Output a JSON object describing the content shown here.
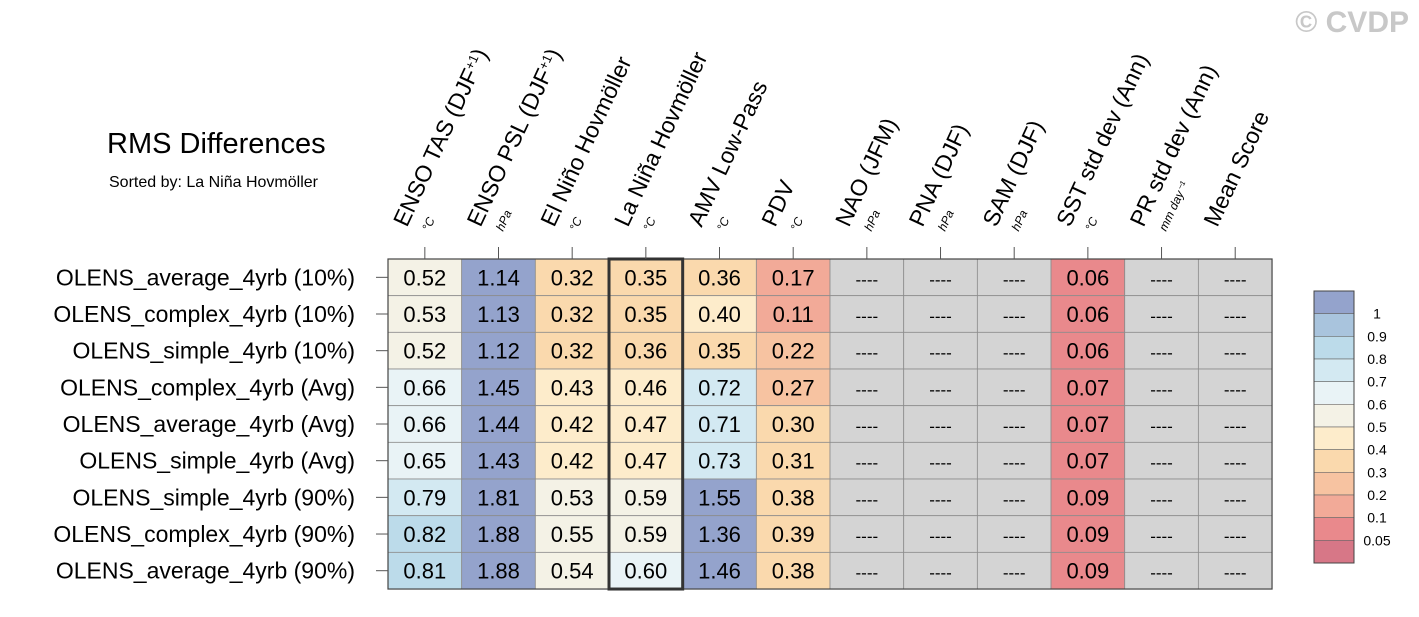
{
  "watermark": "© CVDP",
  "chart_data": {
    "type": "heatmap",
    "title": "RMS Differences",
    "subtitle": "Sorted by: La Niña Hovmöller",
    "columns": [
      {
        "label": "ENSO TAS (DJF",
        "sup": "+1",
        "close": ")",
        "unit": "°C"
      },
      {
        "label": "ENSO PSL (DJF",
        "sup": "+1",
        "close": ")",
        "unit": "hPa"
      },
      {
        "label": "El Niño Hovmöller",
        "sup": "",
        "close": "",
        "unit": "°C"
      },
      {
        "label": "La Niña Hovmöller",
        "sup": "",
        "close": "",
        "unit": "°C"
      },
      {
        "label": "AMV Low-Pass",
        "sup": "",
        "close": "",
        "unit": "°C"
      },
      {
        "label": "PDV",
        "sup": "",
        "close": "",
        "unit": "°C"
      },
      {
        "label": "NAO (JFM)",
        "sup": "",
        "close": "",
        "unit": "hPa"
      },
      {
        "label": "PNA (DJF)",
        "sup": "",
        "close": "",
        "unit": "hPa"
      },
      {
        "label": "SAM (DJF)",
        "sup": "",
        "close": "",
        "unit": "hPa"
      },
      {
        "label": "SST std dev (Ann)",
        "sup": "",
        "close": "",
        "unit": "°C"
      },
      {
        "label": "PR std dev (Ann)",
        "sup": "",
        "close": "",
        "unit": "mm day⁻¹"
      },
      {
        "label": "Mean Score",
        "sup": "",
        "close": "",
        "unit": ""
      }
    ],
    "highlight_column": 3,
    "missing_text": "----",
    "missing_color": "#d4d4d4",
    "rows": [
      {
        "name": "OLENS_average_4yrb (10%)",
        "values": [
          0.52,
          1.14,
          0.32,
          0.35,
          0.36,
          0.17,
          null,
          null,
          null,
          0.06,
          null,
          null
        ]
      },
      {
        "name": "OLENS_complex_4yrb (10%)",
        "values": [
          0.53,
          1.13,
          0.32,
          0.35,
          0.4,
          0.11,
          null,
          null,
          null,
          0.06,
          null,
          null
        ]
      },
      {
        "name": "OLENS_simple_4yrb (10%)",
        "values": [
          0.52,
          1.12,
          0.32,
          0.36,
          0.35,
          0.22,
          null,
          null,
          null,
          0.06,
          null,
          null
        ]
      },
      {
        "name": "OLENS_complex_4yrb (Avg)",
        "values": [
          0.66,
          1.45,
          0.43,
          0.46,
          0.72,
          0.27,
          null,
          null,
          null,
          0.07,
          null,
          null
        ]
      },
      {
        "name": "OLENS_average_4yrb (Avg)",
        "values": [
          0.66,
          1.44,
          0.42,
          0.47,
          0.71,
          0.3,
          null,
          null,
          null,
          0.07,
          null,
          null
        ]
      },
      {
        "name": "OLENS_simple_4yrb (Avg)",
        "values": [
          0.65,
          1.43,
          0.42,
          0.47,
          0.73,
          0.31,
          null,
          null,
          null,
          0.07,
          null,
          null
        ]
      },
      {
        "name": "OLENS_simple_4yrb (90%)",
        "values": [
          0.79,
          1.81,
          0.53,
          0.59,
          1.55,
          0.38,
          null,
          null,
          null,
          0.09,
          null,
          null
        ]
      },
      {
        "name": "OLENS_complex_4yrb (90%)",
        "values": [
          0.82,
          1.88,
          0.55,
          0.59,
          1.36,
          0.39,
          null,
          null,
          null,
          0.09,
          null,
          null
        ]
      },
      {
        "name": "OLENS_average_4yrb (90%)",
        "values": [
          0.81,
          1.88,
          0.54,
          0.6,
          1.46,
          0.38,
          null,
          null,
          null,
          0.09,
          null,
          null
        ]
      }
    ],
    "colorbar": {
      "labels": [
        "1",
        "0.9",
        "0.8",
        "0.7",
        "0.6",
        "0.5",
        "0.4",
        "0.3",
        "0.2",
        "0.1",
        "0.05"
      ],
      "colors": [
        "#94a3cc",
        "#a9c4dd",
        "#bcdbea",
        "#d3e9f2",
        "#e9f3f6",
        "#f4f2e6",
        "#fdeccb",
        "#fad9ad",
        "#f7c3a1",
        "#f2aa98",
        "#e9898c",
        "#d77787"
      ]
    }
  }
}
